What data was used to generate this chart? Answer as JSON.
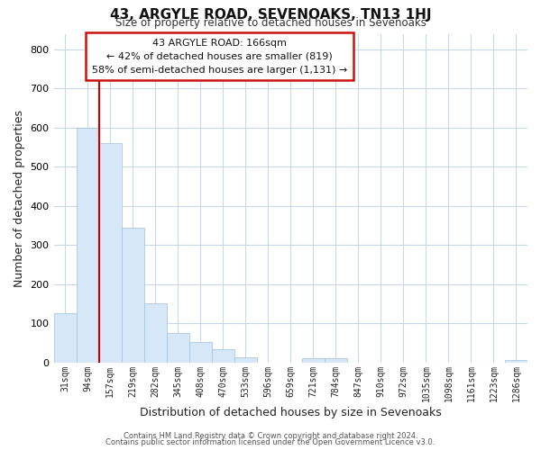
{
  "title": "43, ARGYLE ROAD, SEVENOAKS, TN13 1HJ",
  "subtitle": "Size of property relative to detached houses in Sevenoaks",
  "xlabel": "Distribution of detached houses by size in Sevenoaks",
  "ylabel": "Number of detached properties",
  "bar_labels": [
    "31sqm",
    "94sqm",
    "157sqm",
    "219sqm",
    "282sqm",
    "345sqm",
    "408sqm",
    "470sqm",
    "533sqm",
    "596sqm",
    "659sqm",
    "721sqm",
    "784sqm",
    "847sqm",
    "910sqm",
    "972sqm",
    "1035sqm",
    "1098sqm",
    "1161sqm",
    "1223sqm",
    "1286sqm"
  ],
  "bar_values": [
    125,
    600,
    560,
    345,
    150,
    75,
    52,
    33,
    13,
    0,
    0,
    10,
    10,
    0,
    0,
    0,
    0,
    0,
    0,
    0,
    5
  ],
  "bar_color": "#d6e8f7",
  "bar_edge_color": "#a0c0e0",
  "highlight_bar_index": 2,
  "highlight_color": "#cc0000",
  "ylim": [
    0,
    840
  ],
  "yticks": [
    0,
    100,
    200,
    300,
    400,
    500,
    600,
    700,
    800
  ],
  "annotation_title": "43 ARGYLE ROAD: 166sqm",
  "annotation_line1": "← 42% of detached houses are smaller (819)",
  "annotation_line2": "58% of semi-detached houses are larger (1,131) →",
  "footer_line1": "Contains HM Land Registry data © Crown copyright and database right 2024.",
  "footer_line2": "Contains public sector information licensed under the Open Government Licence v3.0.",
  "background_color": "#ffffff",
  "grid_color": "#c8d8ea"
}
